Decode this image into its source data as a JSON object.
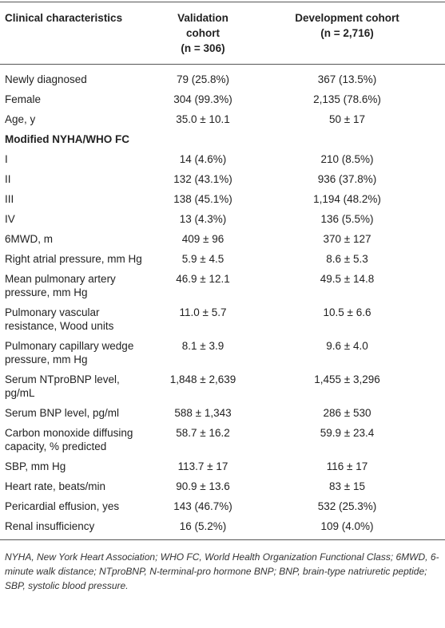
{
  "table": {
    "header": [
      [
        "Clinical characteristics"
      ],
      [
        "Validation cohort",
        "(n = 306)"
      ],
      [
        "Development cohort",
        "(n = 2,716)"
      ]
    ],
    "rows": [
      [
        "Newly diagnosed",
        "79 (25.8%)",
        "367 (13.5%)"
      ],
      [
        "Female",
        "304 (99.3%)",
        "2,135 (78.6%)"
      ],
      [
        "Age, y",
        "35.0 ± 10.1",
        "50 ± 17"
      ],
      [
        "Modified NYHA/WHO FC"
      ],
      [
        "I",
        "14 (4.6%)",
        "210 (8.5%)"
      ],
      [
        "II",
        "132 (43.1%)",
        "936 (37.8%)"
      ],
      [
        "III",
        "138 (45.1%)",
        "1,194 (48.2%)"
      ],
      [
        "IV",
        "13 (4.3%)",
        "136 (5.5%)"
      ],
      [
        "6MWD, m",
        "409 ± 96",
        "370 ± 127"
      ],
      [
        "Right atrial pressure, mm Hg",
        "5.9 ± 4.5",
        "8.6 ± 5.3"
      ],
      [
        "Mean pulmonary artery pressure, mm Hg",
        "46.9 ± 12.1",
        "49.5 ± 14.8"
      ],
      [
        "Pulmonary vascular resistance, Wood units",
        "11.0 ± 5.7",
        "10.5 ± 6.6"
      ],
      [
        "Pulmonary capillary wedge pressure, mm Hg",
        "8.1 ± 3.9",
        "9.6 ± 4.0"
      ],
      [
        "Serum NTproBNP level, pg/mL",
        "1,848 ± 2,639",
        "1,455 ± 3,296"
      ],
      [
        "Serum BNP level, pg/ml",
        "588 ± 1,343",
        "286 ± 530"
      ],
      [
        "Carbon monoxide diffusing capacity, % predicted",
        "58.7 ± 16.2",
        "59.9 ± 23.4"
      ],
      [
        "SBP, mm Hg",
        "113.7 ± 17",
        "116 ± 17"
      ],
      [
        "Heart rate, beats/min",
        "90.9 ± 13.6",
        "83 ± 15"
      ],
      [
        "Pericardial effusion, yes",
        "143 (46.7%)",
        "532 (25.3%)"
      ],
      [
        "Renal insufficiency",
        "16 (5.2%)",
        "109 (4.0%)"
      ]
    ],
    "footnote": "NYHA, New York Heart Association; WHO FC, World Health Organization Functional Class; 6MWD, 6-minute walk distance; NTproBNP, N-terminal-pro hormone BNP; BNP, brain-type natriuretic peptide; SBP, systolic blood pressure."
  }
}
